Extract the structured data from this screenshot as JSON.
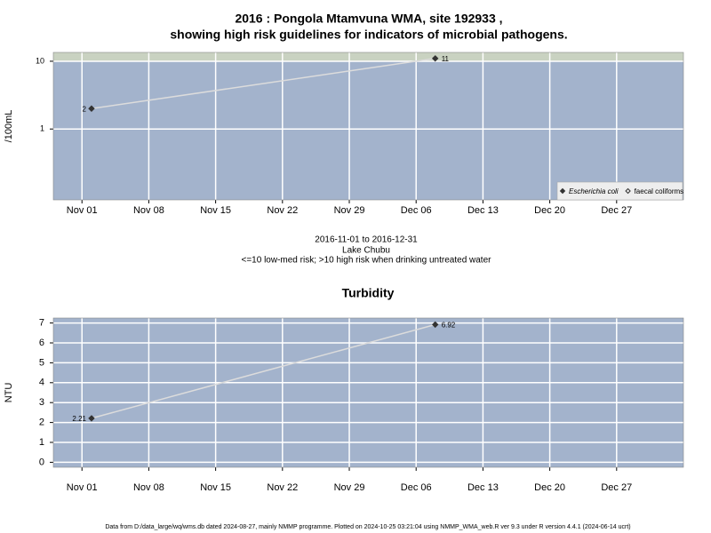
{
  "chart_data": [
    {
      "type": "line",
      "title": "2016 : Pongola Mtamvuna WMA, site 192933 ,",
      "subtitle": "showing high risk guidelines for indicators of microbial pathogens.",
      "notes": [
        "2016-11-01 to 2016-12-31",
        "Lake Chubu",
        "<=10 low-med risk; >10 high risk when drinking untreated water"
      ],
      "y_label": "/100mL",
      "log_scale": true,
      "threshold": 10,
      "band_color": "#c9d2c1",
      "background": "#a3b3cc",
      "grid": true,
      "legend": "bottom-right",
      "x": [
        "2016-11-02",
        "2016-12-08"
      ],
      "xlim": [
        "2016-10-29",
        "2017-01-03"
      ],
      "xticks": [
        {
          "value": "2016-11-01",
          "label": "Nov 01"
        },
        {
          "value": "2016-11-08",
          "label": "Nov 08"
        },
        {
          "value": "2016-11-15",
          "label": "Nov 15"
        },
        {
          "value": "2016-11-22",
          "label": "Nov 22"
        },
        {
          "value": "2016-11-29",
          "label": "Nov 29"
        },
        {
          "value": "2016-12-06",
          "label": "Dec 06"
        },
        {
          "value": "2016-12-13",
          "label": "Dec 13"
        },
        {
          "value": "2016-12-20",
          "label": "Dec 20"
        },
        {
          "value": "2016-12-27",
          "label": "Dec 27"
        }
      ],
      "ylim": [
        0.09,
        13.5
      ],
      "yticks": [
        1,
        10
      ],
      "series": [
        {
          "name": "Escherichia coli",
          "color": "#333333",
          "line_color": "#dcdcdc",
          "marker": "filled",
          "values": [
            2,
            11
          ]
        },
        {
          "name": "faecal coliforms",
          "color": "#333333",
          "line_color": "#dcdcdc",
          "marker": "open",
          "values": [
            null,
            null
          ]
        }
      ]
    },
    {
      "type": "line",
      "title": "Turbidity",
      "y_label": "NTU",
      "log_scale": false,
      "background": "#a3b3cc",
      "grid": true,
      "x": [
        "2016-11-02",
        "2016-12-08"
      ],
      "xlim": [
        "2016-10-29",
        "2017-01-03"
      ],
      "xticks": [
        {
          "value": "2016-11-01",
          "label": "Nov 01"
        },
        {
          "value": "2016-11-08",
          "label": "Nov 08"
        },
        {
          "value": "2016-11-15",
          "label": "Nov 15"
        },
        {
          "value": "2016-11-22",
          "label": "Nov 22"
        },
        {
          "value": "2016-11-29",
          "label": "Nov 29"
        },
        {
          "value": "2016-12-06",
          "label": "Dec 06"
        },
        {
          "value": "2016-12-13",
          "label": "Dec 13"
        },
        {
          "value": "2016-12-20",
          "label": "Dec 20"
        },
        {
          "value": "2016-12-27",
          "label": "Dec 27"
        }
      ],
      "ylim": [
        -0.25,
        7.25
      ],
      "yticks": [
        0,
        1,
        2,
        3,
        4,
        5,
        6,
        7
      ],
      "series": [
        {
          "name": "Turbidity",
          "color": "#333333",
          "line_color": "#dcdcdc",
          "marker": "filled",
          "values": [
            2.21,
            6.92
          ]
        }
      ]
    }
  ],
  "footer": "Data from D:/data_large/wq/wms.db dated 2024-08-27, mainly NMMP programme. Plotted on 2024-10-25 03:21:04 using NMMP_WMA_web.R ver 9.3 under R version 4.4.1 (2024-06-14 ucrt)"
}
